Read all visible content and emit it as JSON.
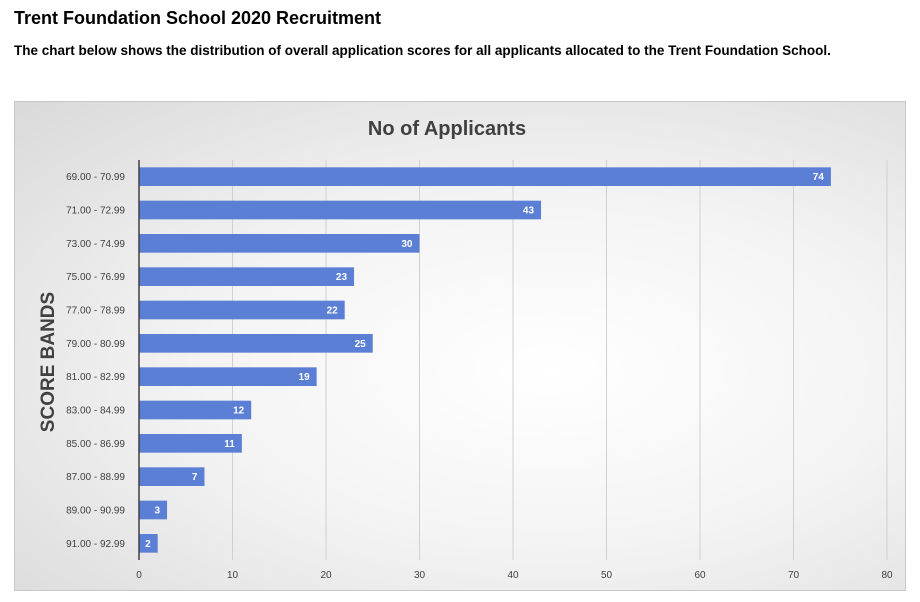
{
  "page": {
    "title": "Trent Foundation School 2020 Recruitment",
    "subtitle": "The chart below shows the distribution of overall application scores for all applicants allocated to the Trent Foundation School."
  },
  "colors": {
    "bar": "#5a7fd4",
    "grid": "#d0d0d0",
    "axis": "#404040"
  },
  "chart_data": {
    "type": "bar",
    "orientation": "horizontal",
    "title": "No of Applicants",
    "ylabel": "SCORE BANDS",
    "xlabel": "",
    "categories": [
      "69.00 - 70.99",
      "71.00 - 72.99",
      "73.00 - 74.99",
      "75.00 - 76.99",
      "77.00 - 78.99",
      "79.00 - 80.99",
      "81.00 - 82.99",
      "83.00 - 84.99",
      "85.00 - 86.99",
      "87.00 - 88.99",
      "89.00 - 90.99",
      "91.00 - 92.99"
    ],
    "values": [
      74,
      43,
      30,
      23,
      22,
      25,
      19,
      12,
      11,
      7,
      3,
      2
    ],
    "xlim": [
      0,
      80
    ],
    "ticks": [
      0,
      10,
      20,
      30,
      40,
      50,
      60,
      70,
      80
    ],
    "grid": true,
    "data_labels": true,
    "legend": "none"
  }
}
